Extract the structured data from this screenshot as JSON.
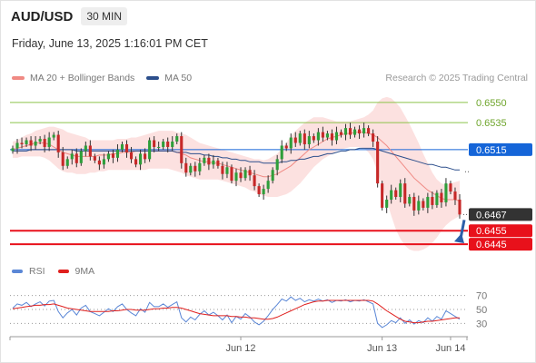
{
  "header": {
    "symbol": "AUD/USD",
    "timeframe": "30 MIN"
  },
  "datetime": "Friday, June 13, 2025 1:16:01 PM CET",
  "credit": "Research © 2025 Trading Central",
  "legend": [
    {
      "label": "MA 20 + Bollinger Bands",
      "color": "#f08a84"
    },
    {
      "label": "MA 50",
      "color": "#2c4f8c"
    }
  ],
  "rsi_legend": [
    {
      "label": "RSI",
      "color": "#5b87d6"
    },
    {
      "label": "9MA",
      "color": "#e0201e"
    }
  ],
  "colors": {
    "up": "#2e9e3a",
    "down": "#c62828",
    "wick": "#333333",
    "ma20": "#f08a84",
    "bb_fill": "#fbdcda",
    "ma50": "#2c4f8c",
    "target": "#8bc34a",
    "pivot": "#1565d8",
    "support": "#e8111b",
    "price_box": "#333333",
    "arrow": "#2c5fa8",
    "rsi": "#5b87d6",
    "rsi_ma": "#e0201e"
  },
  "chart_data": {
    "type": "candlestick",
    "symbol": "AUD/USD",
    "interval": "30 MIN",
    "ylim": [
      0.6437,
      0.6562
    ],
    "x_ticks": [
      "Jun 12",
      "Jun 13",
      "Jun 14"
    ],
    "levels": [
      {
        "label": "0.6550",
        "value": 0.655,
        "kind": "target"
      },
      {
        "label": "0.6535",
        "value": 0.6535,
        "kind": "target"
      },
      {
        "label": "0.6515",
        "value": 0.6515,
        "kind": "pivot"
      },
      {
        "label": "0.6467",
        "value": 0.6467,
        "kind": "last"
      },
      {
        "label": "0.6455",
        "value": 0.6455,
        "kind": "support"
      },
      {
        "label": "0.6445",
        "value": 0.6445,
        "kind": "support"
      }
    ],
    "last_price": 0.6467,
    "closes": [
      0.6516,
      0.652,
      0.6519,
      0.6522,
      0.6518,
      0.6521,
      0.6523,
      0.6517,
      0.6524,
      0.6526,
      0.6513,
      0.6503,
      0.6508,
      0.6512,
      0.6505,
      0.6514,
      0.6518,
      0.651,
      0.6507,
      0.6504,
      0.6508,
      0.6512,
      0.6509,
      0.6515,
      0.6519,
      0.6513,
      0.6508,
      0.6504,
      0.6512,
      0.6508,
      0.6522,
      0.6517,
      0.6517,
      0.6521,
      0.6517,
      0.6521,
      0.6525,
      0.6505,
      0.6498,
      0.6503,
      0.6499,
      0.6505,
      0.6509,
      0.6504,
      0.6507,
      0.6503,
      0.6497,
      0.6502,
      0.6492,
      0.6498,
      0.6494,
      0.65,
      0.6496,
      0.6488,
      0.6482,
      0.6486,
      0.6492,
      0.65,
      0.6508,
      0.6518,
      0.6516,
      0.6524,
      0.652,
      0.6527,
      0.6519,
      0.6525,
      0.6522,
      0.6528,
      0.6524,
      0.6527,
      0.6522,
      0.6528,
      0.6526,
      0.6531,
      0.6526,
      0.653,
      0.6527,
      0.6531,
      0.6527,
      0.6521,
      0.649,
      0.6472,
      0.6478,
      0.6485,
      0.648,
      0.649,
      0.6475,
      0.648,
      0.647,
      0.6477,
      0.6472,
      0.648,
      0.6474,
      0.6483,
      0.6476,
      0.649,
      0.6484,
      0.6478,
      0.6467
    ],
    "ma20": [
      0.6515,
      0.6516,
      0.6517,
      0.6518,
      0.6519,
      0.652,
      0.652,
      0.652,
      0.6519,
      0.6517,
      0.6515,
      0.6513,
      0.6512,
      0.6511,
      0.651,
      0.651,
      0.651,
      0.651,
      0.651,
      0.6511,
      0.6511,
      0.6511,
      0.6512,
      0.6512,
      0.6513,
      0.6513,
      0.6513,
      0.6514,
      0.6514,
      0.6514,
      0.6514,
      0.6514,
      0.6514,
      0.6514,
      0.6514,
      0.6514,
      0.6513,
      0.6512,
      0.6511,
      0.6509,
      0.6508,
      0.6507,
      0.6506,
      0.6506,
      0.6505,
      0.6505,
      0.6504,
      0.6503,
      0.6502,
      0.6501,
      0.65,
      0.6499,
      0.6498,
      0.6497,
      0.6496,
      0.6495,
      0.6495,
      0.6496,
      0.6497,
      0.6499,
      0.6501,
      0.6503,
      0.6506,
      0.6509,
      0.6512,
      0.6515,
      0.6517,
      0.6519,
      0.6521,
      0.6523,
      0.6524,
      0.6525,
      0.6526,
      0.6527,
      0.6527,
      0.6528,
      0.6528,
      0.6528,
      0.6527,
      0.6526,
      0.6524,
      0.6521,
      0.6518,
      0.6514,
      0.651,
      0.6506,
      0.6502,
      0.6498,
      0.6494,
      0.6491,
      0.6488,
      0.6485,
      0.6483,
      0.6481,
      0.6479,
      0.6478,
      0.6478,
      0.6478,
      0.6477
    ],
    "bb_upper": [
      0.6521,
      0.6522,
      0.6524,
      0.6526,
      0.6527,
      0.6529,
      0.653,
      0.6531,
      0.6532,
      0.6532,
      0.6531,
      0.653,
      0.6528,
      0.6527,
      0.6526,
      0.6525,
      0.6524,
      0.6522,
      0.6522,
      0.6522,
      0.6522,
      0.6522,
      0.6522,
      0.6523,
      0.6523,
      0.6523,
      0.6524,
      0.6524,
      0.6525,
      0.6526,
      0.6527,
      0.6528,
      0.6529,
      0.6529,
      0.6529,
      0.6529,
      0.6528,
      0.6527,
      0.6526,
      0.6524,
      0.6522,
      0.652,
      0.6519,
      0.6518,
      0.6517,
      0.6516,
      0.6515,
      0.6514,
      0.6513,
      0.6512,
      0.6511,
      0.651,
      0.6509,
      0.6508,
      0.6508,
      0.6507,
      0.6508,
      0.651,
      0.6512,
      0.6516,
      0.652,
      0.6525,
      0.6529,
      0.6532,
      0.6535,
      0.6537,
      0.6539,
      0.6539,
      0.6539,
      0.6538,
      0.6537,
      0.6536,
      0.6536,
      0.6536,
      0.6536,
      0.6537,
      0.6538,
      0.6539,
      0.6541,
      0.6544,
      0.655,
      0.6553,
      0.6554,
      0.6553,
      0.655,
      0.6546,
      0.654,
      0.6534,
      0.6527,
      0.652,
      0.6512,
      0.6505,
      0.6498,
      0.6493,
      0.649,
      0.6489,
      0.649,
      0.6491,
      0.6492
    ],
    "bb_lower": [
      0.6509,
      0.6509,
      0.651,
      0.651,
      0.651,
      0.651,
      0.651,
      0.6509,
      0.6507,
      0.6504,
      0.6501,
      0.6499,
      0.6498,
      0.6498,
      0.6497,
      0.6497,
      0.6497,
      0.6498,
      0.6498,
      0.6499,
      0.6499,
      0.65,
      0.65,
      0.65,
      0.65,
      0.65,
      0.65,
      0.65,
      0.65,
      0.65,
      0.6501,
      0.6501,
      0.6501,
      0.6501,
      0.6501,
      0.65,
      0.6499,
      0.6498,
      0.6496,
      0.6495,
      0.6494,
      0.6493,
      0.6493,
      0.6493,
      0.6493,
      0.6493,
      0.6492,
      0.6491,
      0.649,
      0.6489,
      0.6488,
      0.6487,
      0.6485,
      0.6484,
      0.6482,
      0.6481,
      0.648,
      0.648,
      0.648,
      0.6481,
      0.6482,
      0.6484,
      0.6487,
      0.649,
      0.6494,
      0.6498,
      0.6502,
      0.6505,
      0.6508,
      0.651,
      0.6512,
      0.6514,
      0.6515,
      0.6516,
      0.6517,
      0.6517,
      0.6517,
      0.6516,
      0.6513,
      0.6508,
      0.6498,
      0.6488,
      0.6477,
      0.6466,
      0.6456,
      0.6449,
      0.6444,
      0.6441,
      0.644,
      0.644,
      0.6441,
      0.6443,
      0.6446,
      0.645,
      0.6455,
      0.6459,
      0.6462,
      0.6464,
      0.6466
    ],
    "ma50": [
      0.6514,
      0.6514,
      0.6514,
      0.6514,
      0.6515,
      0.6515,
      0.6515,
      0.6515,
      0.6515,
      0.6515,
      0.6515,
      0.6515,
      0.6515,
      0.6515,
      0.6514,
      0.6514,
      0.6514,
      0.6514,
      0.6514,
      0.6514,
      0.6514,
      0.6514,
      0.6514,
      0.6514,
      0.6514,
      0.6514,
      0.6514,
      0.6514,
      0.6514,
      0.6514,
      0.6514,
      0.6514,
      0.6514,
      0.6514,
      0.6514,
      0.6514,
      0.6513,
      0.6513,
      0.6513,
      0.6512,
      0.6512,
      0.6512,
      0.6511,
      0.6511,
      0.651,
      0.651,
      0.6509,
      0.6509,
      0.6508,
      0.6508,
      0.6507,
      0.6507,
      0.6506,
      0.6506,
      0.6506,
      0.6505,
      0.6505,
      0.6505,
      0.6505,
      0.6506,
      0.6506,
      0.6507,
      0.6507,
      0.6508,
      0.6508,
      0.6509,
      0.651,
      0.651,
      0.6511,
      0.6512,
      0.6512,
      0.6513,
      0.6514,
      0.6514,
      0.6515,
      0.6515,
      0.6516,
      0.6516,
      0.6516,
      0.6516,
      0.6515,
      0.6514,
      0.6513,
      0.6512,
      0.6511,
      0.651,
      0.6509,
      0.6508,
      0.6507,
      0.6506,
      0.6505,
      0.6504,
      0.6504,
      0.6503,
      0.6502,
      0.6502,
      0.6501,
      0.65,
      0.65
    ],
    "rsi": {
      "ylim": [
        20,
        80
      ],
      "ticks": [
        70,
        50,
        30
      ],
      "values": [
        52,
        58,
        56,
        60,
        54,
        58,
        61,
        55,
        62,
        63,
        47,
        38,
        45,
        50,
        42,
        52,
        56,
        47,
        44,
        41,
        46,
        51,
        47,
        54,
        58,
        50,
        45,
        41,
        51,
        46,
        60,
        54,
        54,
        58,
        53,
        57,
        61,
        38,
        32,
        39,
        35,
        43,
        48,
        42,
        46,
        41,
        35,
        42,
        31,
        40,
        36,
        44,
        39,
        32,
        28,
        33,
        41,
        50,
        57,
        65,
        62,
        68,
        63,
        66,
        61,
        64,
        62,
        65,
        62,
        64,
        60,
        63,
        62,
        64,
        61,
        63,
        62,
        64,
        61,
        58,
        30,
        24,
        28,
        34,
        31,
        38,
        30,
        35,
        29,
        34,
        31,
        38,
        33,
        40,
        36,
        48,
        44,
        40,
        36
      ],
      "ma9": [
        51,
        52,
        53,
        54,
        55,
        56,
        56,
        57,
        57,
        58,
        56,
        54,
        52,
        51,
        50,
        49,
        48,
        47,
        47,
        47,
        47,
        47,
        48,
        48,
        49,
        50,
        50,
        49,
        49,
        49,
        50,
        51,
        51,
        52,
        52,
        53,
        53,
        52,
        50,
        48,
        46,
        44,
        43,
        42,
        41,
        41,
        41,
        41,
        40,
        40,
        39,
        39,
        38,
        38,
        37,
        36,
        36,
        37,
        39,
        42,
        45,
        48,
        51,
        54,
        57,
        59,
        61,
        62,
        62,
        63,
        63,
        63,
        63,
        63,
        63,
        63,
        63,
        63,
        63,
        62,
        58,
        53,
        48,
        44,
        40,
        36,
        33,
        32,
        31,
        31,
        32,
        33,
        33,
        34,
        35,
        36,
        37,
        38,
        38
      ]
    }
  }
}
